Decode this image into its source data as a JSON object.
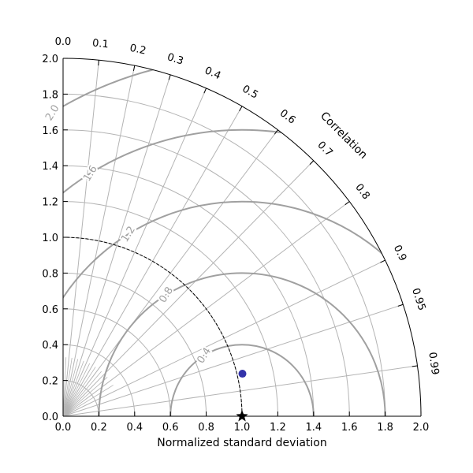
{
  "chart_data": {
    "type": "scatter",
    "subtype": "taylor-diagram",
    "xlabel": "Normalized standard deviation",
    "ylabel": "",
    "correlation_label": "Correlation",
    "std_range": [
      0.0,
      2.0
    ],
    "std_ticks": [
      "0.0",
      "0.2",
      "0.4",
      "0.6",
      "0.8",
      "1.0",
      "1.2",
      "1.4",
      "1.6",
      "1.8",
      "2.0"
    ],
    "correlation_ticks": [
      "0.0",
      "0.1",
      "0.2",
      "0.3",
      "0.4",
      "0.5",
      "0.6",
      "0.7",
      "0.8",
      "0.9",
      "0.95",
      "0.99"
    ],
    "std_gridlines": [
      0.2,
      0.4,
      0.6,
      0.8,
      1.0,
      1.2,
      1.4,
      1.6,
      1.8
    ],
    "rms_contours": [
      0.4,
      0.8,
      1.2,
      1.6,
      2.0
    ],
    "rms_labels": [
      "0.4",
      "0.8",
      "1.2",
      "1.6",
      "2.0"
    ],
    "reference": {
      "std": 1.0,
      "correlation": 1.0,
      "marker": "star"
    },
    "points": [
      {
        "std": 1.03,
        "correlation": 0.973,
        "color": "#3333aa"
      }
    ],
    "colors": {
      "grid": "#b4b4b4",
      "rms": "#a0a0a0",
      "axis": "#000000",
      "point": "#3333aa"
    }
  }
}
